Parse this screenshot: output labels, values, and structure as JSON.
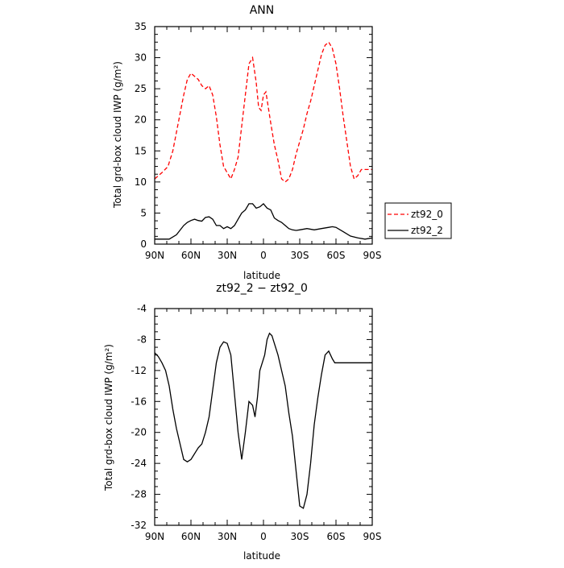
{
  "chart_data": [
    {
      "type": "line",
      "title": "ANN",
      "xlabel": "latitude",
      "ylabel": "Total grd-box cloud IWP (g/m²)",
      "xlim": [
        90,
        -90
      ],
      "ylim": [
        0,
        35
      ],
      "xticks": [
        90,
        60,
        30,
        0,
        -30,
        -60,
        -90
      ],
      "xtick_labels": [
        "90N",
        "60N",
        "30N",
        "0",
        "30S",
        "60S",
        "90S"
      ],
      "yticks": [
        0,
        5,
        10,
        15,
        20,
        25,
        30,
        35
      ],
      "ytick_labels": [
        "0",
        "5",
        "10",
        "15",
        "20",
        "25",
        "30",
        "35"
      ],
      "legend": {
        "placement": "right",
        "entries": [
          {
            "name": "zt92_0",
            "color": "#ff0000",
            "dash": "dashed"
          },
          {
            "name": "zt92_2",
            "color": "#000000",
            "dash": "solid"
          }
        ]
      },
      "series": [
        {
          "name": "zt92_0",
          "color": "#ff0000",
          "dash": "dashed",
          "x": [
            90,
            84,
            79,
            75,
            72,
            69,
            66,
            63,
            60,
            57,
            54,
            51,
            48,
            45,
            42,
            39,
            36,
            33,
            30,
            27,
            24,
            21,
            18,
            15,
            12,
            9,
            6,
            4,
            2,
            0,
            -2,
            -4,
            -6,
            -9,
            -12,
            -15,
            -18,
            -21,
            -24,
            -27,
            -30,
            -33,
            -36,
            -39,
            -42,
            -45,
            -48,
            -51,
            -54,
            -57,
            -60,
            -63,
            -66,
            -69,
            -72,
            -75,
            -78,
            -81,
            -84,
            -87,
            -90
          ],
          "y": [
            10.5,
            11.5,
            12.5,
            15.0,
            18.0,
            21.0,
            24.0,
            26.5,
            27.5,
            27.0,
            26.5,
            25.5,
            25.0,
            25.5,
            24.0,
            20.5,
            16.0,
            12.5,
            11.5,
            10.5,
            12.0,
            14.0,
            19.0,
            24.0,
            29.0,
            30.0,
            26.0,
            22.0,
            21.5,
            24.0,
            24.5,
            22.0,
            19.5,
            16.0,
            13.5,
            10.5,
            10.0,
            10.5,
            12.0,
            14.5,
            16.5,
            18.5,
            21.0,
            23.0,
            25.5,
            28.0,
            30.5,
            32.0,
            32.5,
            31.5,
            29.0,
            25.0,
            20.5,
            16.5,
            12.5,
            10.5,
            11.0,
            12.0,
            12.0,
            12.0,
            12.0
          ]
        },
        {
          "name": "zt92_2",
          "color": "#000000",
          "dash": "solid",
          "x": [
            90,
            84,
            78,
            72,
            66,
            63,
            60,
            57,
            54,
            51,
            48,
            45,
            42,
            39,
            36,
            33,
            30,
            27,
            24,
            21,
            18,
            15,
            12,
            9,
            6,
            3,
            0,
            -3,
            -6,
            -9,
            -12,
            -15,
            -18,
            -21,
            -24,
            -27,
            -30,
            -36,
            -42,
            -48,
            -54,
            -57,
            -60,
            -66,
            -72,
            -78,
            -84,
            -90
          ],
          "y": [
            0.8,
            0.8,
            0.8,
            1.5,
            3.0,
            3.5,
            3.8,
            4.0,
            3.8,
            3.7,
            4.3,
            4.4,
            4.0,
            3.0,
            3.0,
            2.5,
            2.8,
            2.5,
            3.0,
            4.0,
            5.0,
            5.5,
            6.5,
            6.5,
            5.8,
            6.0,
            6.5,
            5.8,
            5.5,
            4.2,
            3.8,
            3.5,
            3.0,
            2.5,
            2.3,
            2.2,
            2.3,
            2.5,
            2.3,
            2.5,
            2.7,
            2.8,
            2.7,
            2.0,
            1.3,
            1.0,
            0.8,
            1.0
          ]
        }
      ]
    },
    {
      "type": "line",
      "title": "zt92_2 − zt92_0",
      "xlabel": "latitude",
      "ylabel": "Total grd-box cloud IWP (g/m²)",
      "xlim": [
        90,
        -90
      ],
      "ylim": [
        -32,
        -4
      ],
      "xticks": [
        90,
        60,
        30,
        0,
        -30,
        -60,
        -90
      ],
      "xtick_labels": [
        "90N",
        "60N",
        "30N",
        "0",
        "30S",
        "60S",
        "90S"
      ],
      "yticks": [
        -4,
        -8,
        -12,
        -16,
        -20,
        -24,
        -28,
        -32
      ],
      "ytick_labels": [
        "-4",
        "-8",
        "-12",
        "-16",
        "-20",
        "-24",
        "-28",
        "-32"
      ],
      "series": [
        {
          "color": "#000000",
          "dash": "solid",
          "x": [
            90,
            87,
            84,
            81,
            78,
            75,
            72,
            69,
            66,
            63,
            60,
            58,
            56,
            54,
            51,
            48,
            45,
            42,
            39,
            36,
            33,
            30,
            27,
            24,
            21,
            18,
            15,
            12,
            9,
            7,
            5,
            3,
            1,
            -1,
            -3,
            -5,
            -7,
            -9,
            -12,
            -15,
            -18,
            -21,
            -24,
            -27,
            -30,
            -33,
            -36,
            -39,
            -42,
            -45,
            -48,
            -51,
            -54,
            -57,
            -59,
            -61,
            -63,
            -66,
            -69,
            -72,
            -75,
            -78,
            -81,
            -84,
            -87,
            -90
          ],
          "y": [
            -9.7,
            -10.2,
            -11.0,
            -12.0,
            -14.0,
            -17.0,
            -19.5,
            -21.5,
            -23.5,
            -23.8,
            -23.5,
            -23.0,
            -22.5,
            -22.0,
            -21.5,
            -20.0,
            -18.0,
            -14.5,
            -11.0,
            -9.0,
            -8.3,
            -8.5,
            -10.0,
            -15.0,
            -20.0,
            -23.5,
            -20.0,
            -16.0,
            -16.5,
            -18.0,
            -15.5,
            -12.0,
            -11.0,
            -10.0,
            -8.0,
            -7.2,
            -7.5,
            -8.5,
            -10.0,
            -12.0,
            -14.0,
            -17.5,
            -20.5,
            -25.0,
            -29.5,
            -29.8,
            -28.0,
            -24.0,
            -19.0,
            -15.5,
            -12.5,
            -10.0,
            -9.5,
            -10.5,
            -11.0,
            -11.0,
            -11.0,
            -11.0,
            -11.0,
            -11.0,
            -11.0,
            -11.0,
            -11.0,
            -11.0,
            -11.0,
            -11.0
          ]
        }
      ]
    }
  ]
}
